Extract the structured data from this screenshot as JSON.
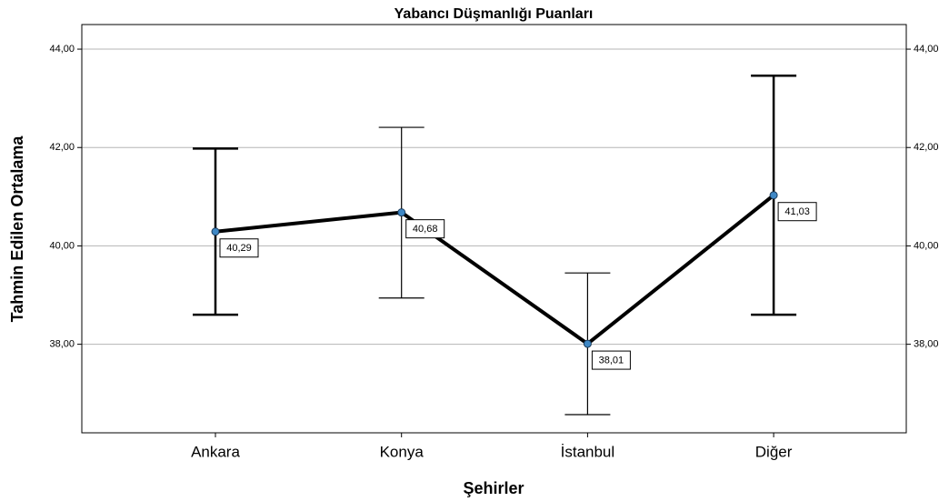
{
  "chart_data": {
    "type": "line",
    "title": "Yabancı Düşmanlığı Puanları",
    "x_label": "Şehirler",
    "y_label": "Tahmin Edilen Ortalama",
    "categories": [
      "Ankara",
      "Konya",
      "İstanbul",
      "Diğer"
    ],
    "series": [
      {
        "name": null,
        "color": "#000000",
        "marker_color": "#3f88c5",
        "values": [
          40.29,
          40.68,
          38.01,
          41.03
        ],
        "value_labels": [
          "40,29",
          "40,68",
          "38,01",
          "41,03"
        ],
        "errors": [
          {
            "low": 38.6,
            "high": 41.98
          },
          {
            "low": 38.94,
            "high": 42.41
          },
          {
            "low": 36.57,
            "high": 39.45
          },
          {
            "low": 38.6,
            "high": 43.46
          }
        ]
      }
    ],
    "ylim": [
      36.2,
      44.5
    ],
    "yticks": [
      {
        "value": 38,
        "label": "38,00"
      },
      {
        "value": 40,
        "label": "40,00"
      },
      {
        "value": 42,
        "label": "42,00"
      },
      {
        "value": 44,
        "label": "44,00"
      }
    ],
    "y2lim": [
      36.2,
      44.5
    ],
    "y2ticks": [
      {
        "value": 38,
        "label": "38,00"
      },
      {
        "value": 40,
        "label": "40,00"
      },
      {
        "value": 42,
        "label": "42,00"
      },
      {
        "value": 44,
        "label": "44,00"
      }
    ],
    "grid": true
  }
}
